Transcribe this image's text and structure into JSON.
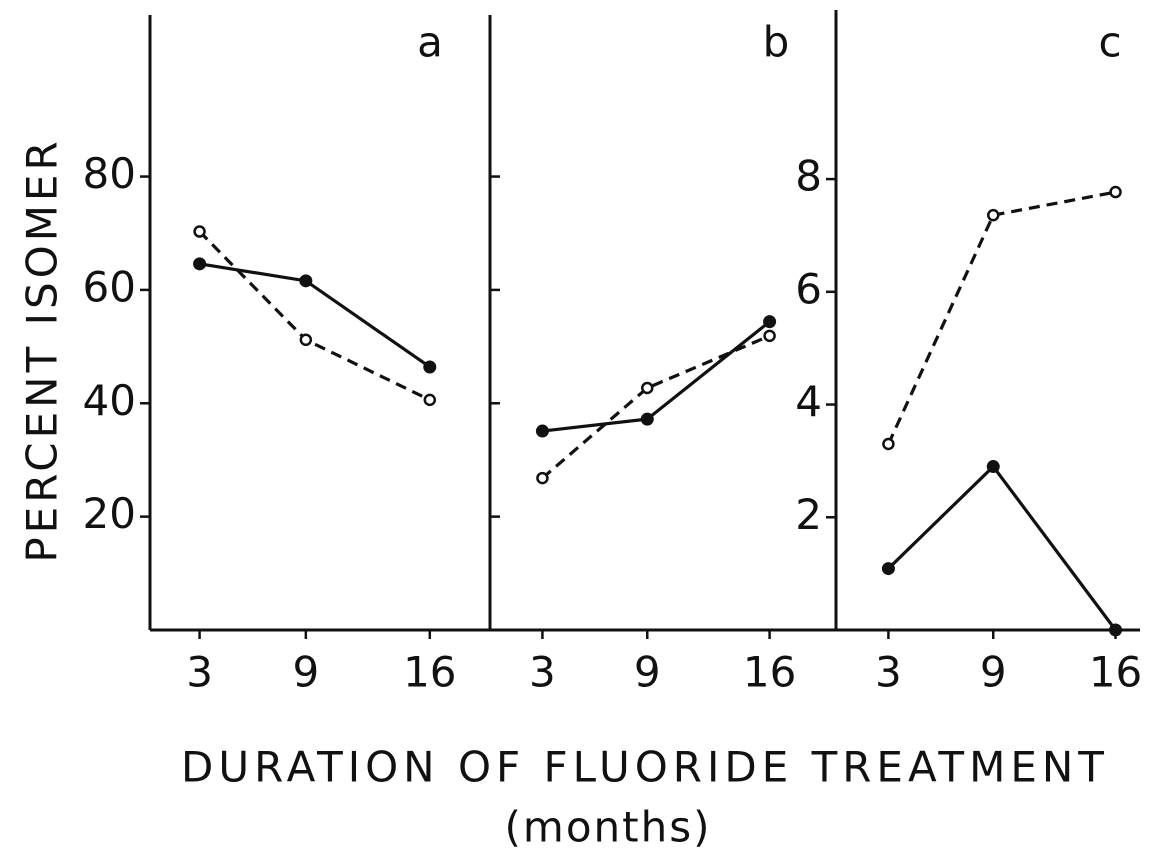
{
  "ylabel": "PERCENT ISOMER",
  "xlabel": "DURATION OF FLUORIDE TREATMENT",
  "xlabel_unit": "(months)",
  "chart_data": [
    {
      "type": "line",
      "panel_label": "a",
      "x": [
        3,
        9,
        16
      ],
      "xlim": [
        0.2,
        19.4
      ],
      "xticks": [
        3,
        9,
        16
      ],
      "ylim": [
        0,
        108.5
      ],
      "yticks": [
        20,
        40,
        60,
        80
      ],
      "ytick_labels": true,
      "ytick_side": "left",
      "series": [
        {
          "color": "#111111",
          "marker": "filled",
          "dashed": false,
          "values": [
            64.6,
            61.6,
            46.4
          ]
        },
        {
          "color": "#111111",
          "marker": "open",
          "dashed": true,
          "values": [
            70.3,
            51.2,
            40.6
          ]
        }
      ]
    },
    {
      "type": "line",
      "panel_label": "b",
      "x": [
        3,
        9,
        16
      ],
      "xlim": [
        0,
        19.8
      ],
      "xticks": [
        3,
        9,
        16
      ],
      "ylim": [
        0,
        108.5
      ],
      "yticks": [
        20,
        40,
        60,
        80
      ],
      "ytick_labels": false,
      "ytick_side": "right",
      "series": [
        {
          "color": "#111111",
          "marker": "filled",
          "dashed": false,
          "values": [
            35.1,
            37.2,
            54.4
          ]
        },
        {
          "color": "#111111",
          "marker": "open",
          "dashed": true,
          "values": [
            26.8,
            42.7,
            51.9
          ]
        }
      ]
    },
    {
      "type": "line",
      "panel_label": "c",
      "x": [
        3,
        9,
        16
      ],
      "xlim": [
        0,
        17.4
      ],
      "xticks": [
        3,
        9,
        16
      ],
      "ylim": [
        0,
        11
      ],
      "yticks": [
        2,
        4,
        6,
        8
      ],
      "ytick_labels": true,
      "ytick_side": "left",
      "series": [
        {
          "color": "#111111",
          "marker": "filled",
          "dashed": false,
          "values": [
            1.09,
            2.9,
            0
          ]
        },
        {
          "color": "#111111",
          "marker": "open",
          "dashed": true,
          "values": [
            3.3,
            7.36,
            7.77
          ]
        }
      ]
    }
  ]
}
